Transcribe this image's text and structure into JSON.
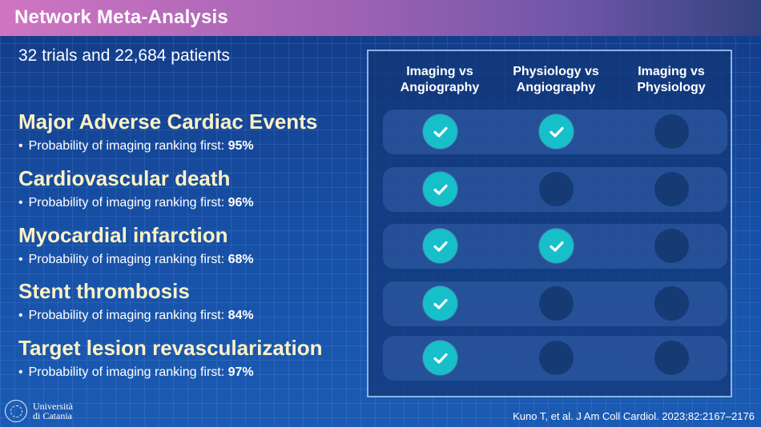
{
  "title": "Network Meta-Analysis",
  "subtitle": "32 trials and 22,684 patients",
  "prob_prefix": "Probability of imaging ranking first: ",
  "outcomes": [
    {
      "name": "Major Adverse Cardiac Events",
      "probability": "95%",
      "marks": [
        true,
        true,
        false
      ]
    },
    {
      "name": "Cardiovascular death",
      "probability": "96%",
      "marks": [
        true,
        false,
        false
      ]
    },
    {
      "name": "Myocardial infarction",
      "probability": "68%",
      "marks": [
        true,
        true,
        false
      ]
    },
    {
      "name": "Stent thrombosis",
      "probability": "84%",
      "marks": [
        true,
        false,
        false
      ]
    },
    {
      "name": "Target lesion revascularization",
      "probability": "97%",
      "marks": [
        true,
        false,
        false
      ]
    }
  ],
  "columns": [
    {
      "line1": "Imaging vs",
      "line2": "Angiography"
    },
    {
      "line1": "Physiology vs",
      "line2": "Angiography"
    },
    {
      "line1": "Imaging vs",
      "line2": "Physiology"
    }
  ],
  "citation": "Kuno T, et al. J Am Coll Cardiol. 2023;82:2167–2176",
  "logo": {
    "line1": "Università",
    "line2": "di Catania",
    "icon": "university-seal-icon"
  },
  "colors": {
    "accent_check": "#17bfc9",
    "outcome_text": "#fdf2c4",
    "header_gradient_start": "#cf75c2"
  }
}
